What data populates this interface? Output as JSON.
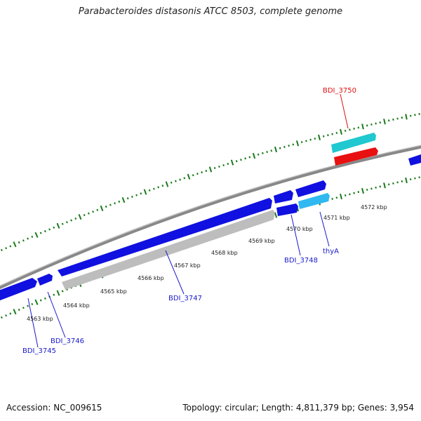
{
  "title": "Parabacteroides distasonis ATCC 8503, complete genome",
  "footer": {
    "accession": "Accession: NC_009615",
    "summary": "Topology: circular; Length: 4,811,379 bp; Genes: 3,954"
  },
  "colors": {
    "backbone": "#808080",
    "gene_default": "#1010e0",
    "gene_pseudo": "#bdbdbd",
    "gene_highlight": "#e81010",
    "gene_cyan": "#20c8d0",
    "gene_light_blue": "#30b8f0",
    "tick": "#1a7a1a",
    "label_blue": "#1a1acc",
    "label_red": "#e01010"
  },
  "scale_labels": [
    "4563 kbp",
    "4564 kbp",
    "4565 kbp",
    "4566 kbp",
    "4567 kbp",
    "4568 kbp",
    "4569 kbp",
    "4570 kbp",
    "4571 kbp",
    "4572 kbp"
  ],
  "gene_labels": [
    {
      "text": "BDI_3745",
      "color": "blue"
    },
    {
      "text": "BDI_3746",
      "color": "blue"
    },
    {
      "text": "BDI_3747",
      "color": "blue"
    },
    {
      "text": "BDI_3748",
      "color": "blue"
    },
    {
      "text": "thyA",
      "color": "blue"
    },
    {
      "text": "BDI_3750",
      "color": "red"
    }
  ]
}
